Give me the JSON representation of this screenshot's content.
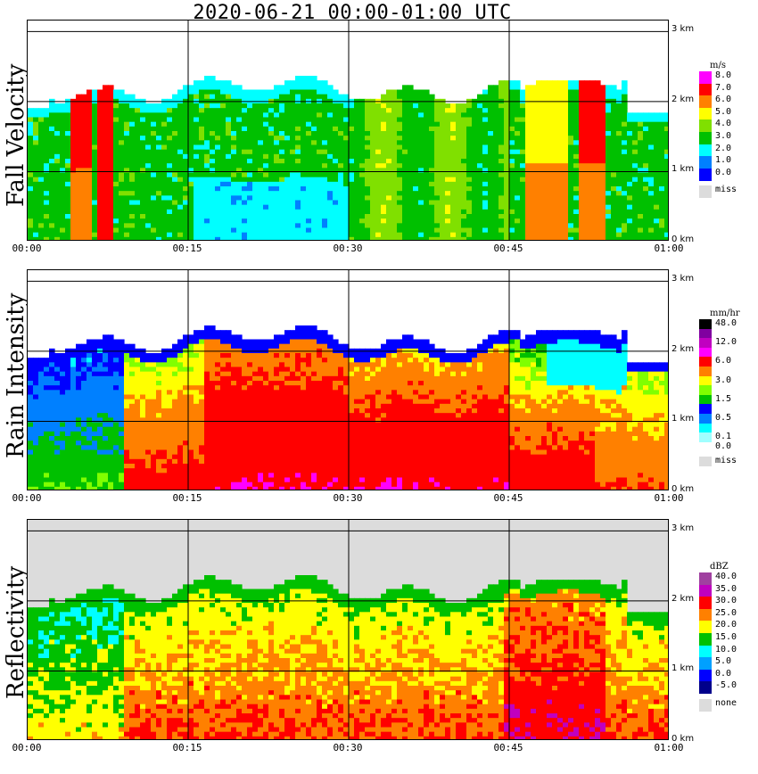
{
  "title": "2020-06-21   00:00-01:00 UTC",
  "time_ticks": [
    "00:00",
    "00:15",
    "00:30",
    "00:45",
    "01:00"
  ],
  "height_ticks": [
    "0 km",
    "1 km",
    "2 km",
    "3 km"
  ],
  "chart_data": [
    {
      "type": "heatmap",
      "title": "Fall Velocity",
      "ylabel": "Fall Velocity",
      "legend_unit": "m/s",
      "legend": [
        {
          "label": "8.0",
          "color": "#ff00ff"
        },
        {
          "label": "7.0",
          "color": "#ff0000"
        },
        {
          "label": "6.0",
          "color": "#ff8000"
        },
        {
          "label": "5.0",
          "color": "#ffff00"
        },
        {
          "label": "4.0",
          "color": "#80e000"
        },
        {
          "label": "3.0",
          "color": "#00c000"
        },
        {
          "label": "2.0",
          "color": "#00ffff"
        },
        {
          "label": "1.0",
          "color": "#0080ff"
        },
        {
          "label": "0.0",
          "color": "#0000ff"
        },
        {
          "label": "miss",
          "color": "#dcdcdc"
        }
      ]
    },
    {
      "type": "heatmap",
      "title": "Rain Intensity",
      "ylabel": "Rain Intensity",
      "legend_unit": "mm/hr",
      "legend": [
        {
          "label": "48.0",
          "color": "#000000"
        },
        {
          "label": "",
          "color": "#8000a0"
        },
        {
          "label": "12.0",
          "color": "#c000c0"
        },
        {
          "label": "",
          "color": "#ff00ff"
        },
        {
          "label": "6.0",
          "color": "#ff0000"
        },
        {
          "label": "",
          "color": "#ff8000"
        },
        {
          "label": "3.0",
          "color": "#ffff00"
        },
        {
          "label": "",
          "color": "#80ff00"
        },
        {
          "label": "1.5",
          "color": "#00c000"
        },
        {
          "label": "",
          "color": "#0000ff"
        },
        {
          "label": "0.5",
          "color": "#0080ff"
        },
        {
          "label": "",
          "color": "#00ffff"
        },
        {
          "label": "0.1",
          "color": "#a0ffff"
        },
        {
          "label": "0.0",
          "color": "#ffffff"
        },
        {
          "label": "miss",
          "color": "#dcdcdc"
        }
      ]
    },
    {
      "type": "heatmap",
      "title": "Reflectivity",
      "ylabel": "Reflectivity",
      "legend_unit": "dBZ",
      "legend": [
        {
          "label": "40.0",
          "color": "#a040a0"
        },
        {
          "label": "35.0",
          "color": "#c000c0"
        },
        {
          "label": "30.0",
          "color": "#ff0000"
        },
        {
          "label": "25.0",
          "color": "#ff8000"
        },
        {
          "label": "20.0",
          "color": "#ffff00"
        },
        {
          "label": "15.0",
          "color": "#00c000"
        },
        {
          "label": "10.0",
          "color": "#00ffff"
        },
        {
          "label": "5.0",
          "color": "#00a0ff"
        },
        {
          "label": "0.0",
          "color": "#0000ff"
        },
        {
          "label": "-5.0",
          "color": "#00008b"
        },
        {
          "label": "none",
          "color": "#dcdcdc"
        }
      ]
    }
  ]
}
